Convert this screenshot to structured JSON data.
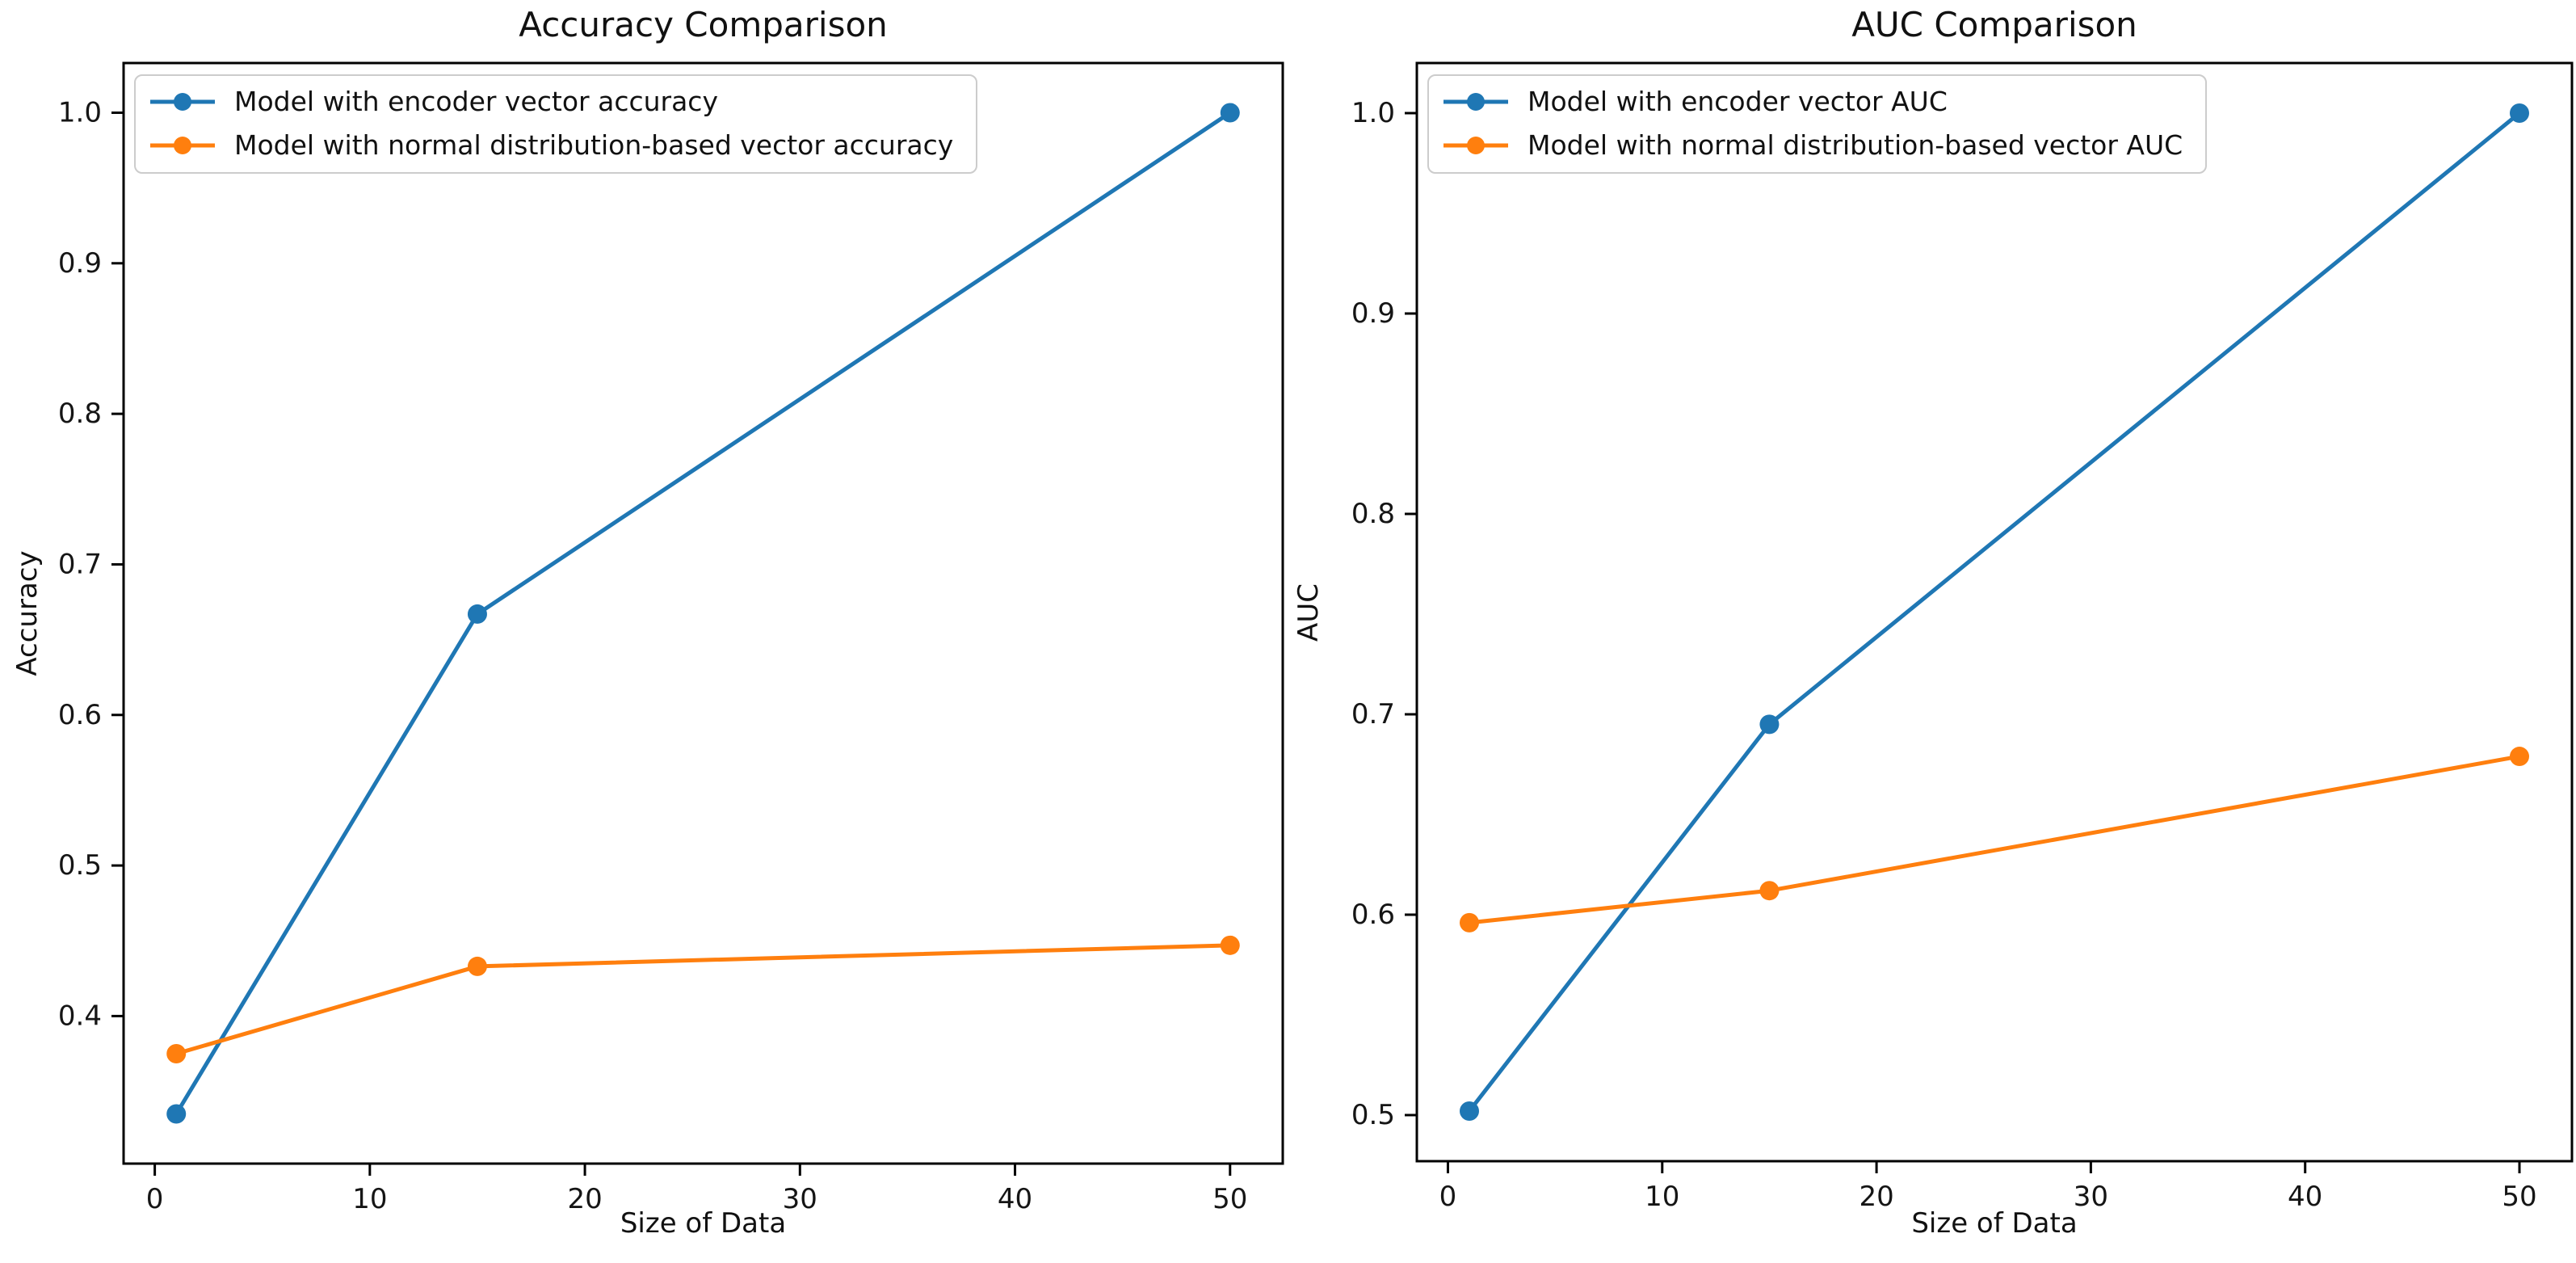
{
  "figure": {
    "background": "#ffffff",
    "text_color": "#111111"
  },
  "chart_data": [
    {
      "id": "accuracy",
      "type": "line",
      "title": "Accuracy Comparison",
      "xlabel": "Size of Data",
      "ylabel": "Accuracy",
      "x": [
        1,
        15,
        50
      ],
      "series": [
        {
          "name": "Model with encoder vector accuracy",
          "color": "#1f77b4",
          "values": [
            0.335,
            0.667,
            1.0
          ]
        },
        {
          "name": "Model with normal distribution-based vector accuracy",
          "color": "#ff7f0e",
          "values": [
            0.375,
            0.433,
            0.447
          ]
        }
      ],
      "marker": "o",
      "grid": false,
      "legend_position": "upper left",
      "xticks": [
        0,
        10,
        20,
        30,
        40,
        50
      ],
      "yticks": [
        0.4,
        0.5,
        0.6,
        0.7,
        0.8,
        0.9,
        1.0
      ],
      "xlim": [
        -1.45,
        52.45
      ],
      "ylim": [
        0.302,
        1.033
      ]
    },
    {
      "id": "auc",
      "type": "line",
      "title": "AUC Comparison",
      "xlabel": "Size of Data",
      "ylabel": "AUC",
      "x": [
        1,
        15,
        50
      ],
      "series": [
        {
          "name": "Model with encoder vector AUC",
          "color": "#1f77b4",
          "values": [
            0.502,
            0.695,
            1.0
          ]
        },
        {
          "name": "Model with normal distribution-based vector AUC",
          "color": "#ff7f0e",
          "values": [
            0.596,
            0.612,
            0.679
          ]
        }
      ],
      "marker": "o",
      "grid": false,
      "legend_position": "upper left",
      "xticks": [
        0,
        10,
        20,
        30,
        40,
        50
      ],
      "yticks": [
        0.5,
        0.6,
        0.7,
        0.8,
        0.9,
        1.0
      ],
      "xlim": [
        -1.45,
        52.45
      ],
      "ylim": [
        0.477,
        1.025
      ]
    }
  ]
}
